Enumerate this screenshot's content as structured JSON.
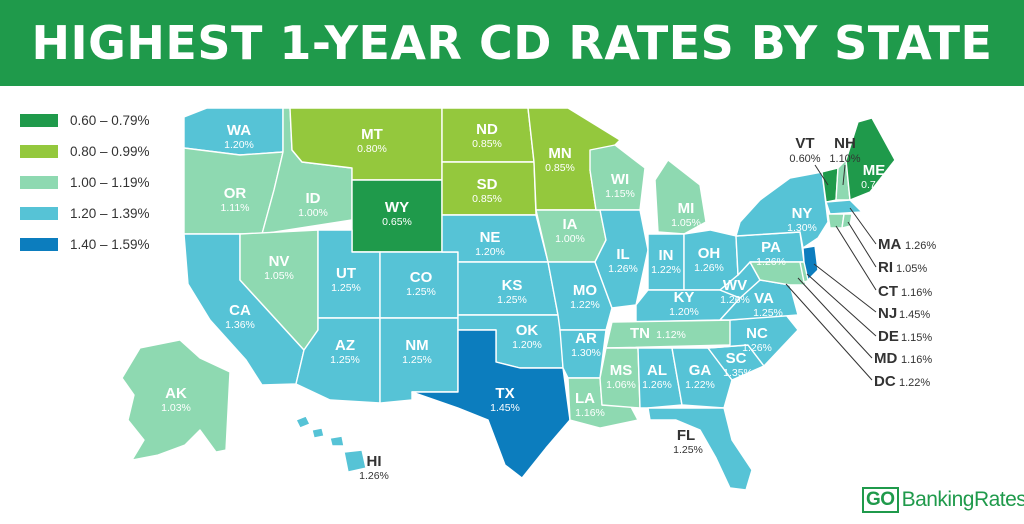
{
  "title": "HIGHEST 1-YEAR CD RATES BY STATE",
  "legend": [
    {
      "label": "0.60 – 0.79%",
      "color": "#1f9a4b"
    },
    {
      "label": "0.80 – 0.99%",
      "color": "#94c83d"
    },
    {
      "label": "1.00 – 1.19%",
      "color": "#8ed9b1"
    },
    {
      "label": "1.20 – 1.39%",
      "color": "#56c3d6"
    },
    {
      "label": "1.40 – 1.59%",
      "color": "#0c7dbe"
    }
  ],
  "states": {
    "WA": {
      "abbr": "WA",
      "rate": "1.20%"
    },
    "OR": {
      "abbr": "OR",
      "rate": "1.11%"
    },
    "CA": {
      "abbr": "CA",
      "rate": "1.36%"
    },
    "ID": {
      "abbr": "ID",
      "rate": "1.00%"
    },
    "NV": {
      "abbr": "NV",
      "rate": "1.05%"
    },
    "MT": {
      "abbr": "MT",
      "rate": "0.80%"
    },
    "WY": {
      "abbr": "WY",
      "rate": "0.65%"
    },
    "UT": {
      "abbr": "UT",
      "rate": "1.25%"
    },
    "AZ": {
      "abbr": "AZ",
      "rate": "1.25%"
    },
    "CO": {
      "abbr": "CO",
      "rate": "1.25%"
    },
    "NM": {
      "abbr": "NM",
      "rate": "1.25%"
    },
    "ND": {
      "abbr": "ND",
      "rate": "0.85%"
    },
    "SD": {
      "abbr": "SD",
      "rate": "0.85%"
    },
    "NE": {
      "abbr": "NE",
      "rate": "1.20%"
    },
    "KS": {
      "abbr": "KS",
      "rate": "1.25%"
    },
    "OK": {
      "abbr": "OK",
      "rate": "1.20%"
    },
    "TX": {
      "abbr": "TX",
      "rate": "1.45%"
    },
    "MN": {
      "abbr": "MN",
      "rate": "0.85%"
    },
    "IA": {
      "abbr": "IA",
      "rate": "1.00%"
    },
    "MO": {
      "abbr": "MO",
      "rate": "1.22%"
    },
    "AR": {
      "abbr": "AR",
      "rate": "1.30%"
    },
    "LA": {
      "abbr": "LA",
      "rate": "1.16%"
    },
    "WI": {
      "abbr": "WI",
      "rate": "1.15%"
    },
    "IL": {
      "abbr": "IL",
      "rate": "1.26%"
    },
    "MI": {
      "abbr": "MI",
      "rate": "1.05%"
    },
    "IN": {
      "abbr": "IN",
      "rate": "1.22%"
    },
    "OH": {
      "abbr": "OH",
      "rate": "1.26%"
    },
    "KY": {
      "abbr": "KY",
      "rate": "1.20%"
    },
    "TN": {
      "abbr": "TN",
      "rate": "1.12%"
    },
    "MS": {
      "abbr": "MS",
      "rate": "1.06%"
    },
    "AL": {
      "abbr": "AL",
      "rate": "1.26%"
    },
    "GA": {
      "abbr": "GA",
      "rate": "1.22%"
    },
    "FL": {
      "abbr": "FL",
      "rate": "1.25%"
    },
    "SC": {
      "abbr": "SC",
      "rate": "1.35%"
    },
    "NC": {
      "abbr": "NC",
      "rate": "1.26%"
    },
    "VA": {
      "abbr": "VA",
      "rate": "1.25%"
    },
    "WV": {
      "abbr": "WV",
      "rate": "1.26%"
    },
    "PA": {
      "abbr": "PA",
      "rate": "1.26%"
    },
    "NY": {
      "abbr": "NY",
      "rate": "1.30%"
    },
    "VT": {
      "abbr": "VT",
      "rate": "0.60%"
    },
    "NH": {
      "abbr": "NH",
      "rate": "1.10%"
    },
    "ME": {
      "abbr": "ME",
      "rate": "0.71%"
    },
    "MA": {
      "abbr": "MA",
      "rate": "1.26%"
    },
    "RI": {
      "abbr": "RI",
      "rate": "1.05%"
    },
    "CT": {
      "abbr": "CT",
      "rate": "1.16%"
    },
    "NJ": {
      "abbr": "NJ",
      "rate": "1.45%"
    },
    "DE": {
      "abbr": "DE",
      "rate": "1.15%"
    },
    "MD": {
      "abbr": "MD",
      "rate": "1.16%"
    },
    "DC": {
      "abbr": "DC",
      "rate": "1.22%"
    },
    "AK": {
      "abbr": "AK",
      "rate": "1.03%"
    },
    "HI": {
      "abbr": "HI",
      "rate": "1.26%"
    }
  },
  "logo": {
    "go": "GO",
    "text": "BankingRates"
  }
}
